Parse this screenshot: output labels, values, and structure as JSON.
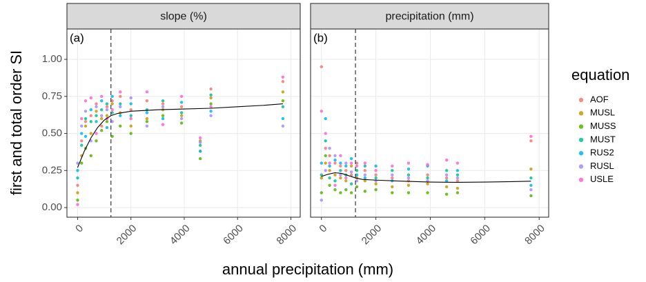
{
  "ylabel": "first and total order SI",
  "xlabel": "annual precipitation (mm)",
  "legend_title": "equation",
  "chart_data": [
    {
      "type": "scatter",
      "strip": "slope (%)",
      "tag": "(a)",
      "x": [
        0,
        150,
        300,
        500,
        700,
        900,
        1100,
        1300,
        1600,
        2000,
        2600,
        3200,
        3900,
        4600,
        5000,
        7700
      ],
      "series": [
        {
          "name": "AOF",
          "color": "#F8766D",
          "values": [
            0.15,
            0.45,
            0.58,
            0.62,
            0.7,
            0.55,
            0.68,
            0.72,
            0.75,
            0.66,
            0.72,
            0.7,
            0.68,
            0.38,
            0.8,
            0.85
          ]
        },
        {
          "name": "MUSL",
          "color": "#C49A00",
          "values": [
            0.1,
            0.35,
            0.55,
            0.5,
            0.65,
            0.6,
            0.62,
            0.7,
            0.64,
            0.55,
            0.6,
            0.66,
            0.62,
            0.45,
            0.74,
            0.78
          ]
        },
        {
          "name": "MUSS",
          "color": "#53B400",
          "values": [
            0.05,
            0.3,
            0.4,
            0.35,
            0.45,
            0.52,
            0.58,
            0.48,
            0.55,
            0.5,
            0.58,
            0.62,
            0.57,
            0.33,
            0.7,
            0.72
          ]
        },
        {
          "name": "MUST",
          "color": "#00C094",
          "values": [
            0.2,
            0.42,
            0.6,
            0.58,
            0.62,
            0.66,
            0.7,
            0.64,
            0.7,
            0.62,
            0.66,
            0.72,
            0.64,
            0.42,
            0.76,
            0.68
          ]
        },
        {
          "name": "RUS2",
          "color": "#00B6EB",
          "values": [
            0.25,
            0.5,
            0.48,
            0.66,
            0.58,
            0.72,
            0.54,
            0.75,
            0.62,
            0.7,
            0.64,
            0.6,
            0.71,
            0.38,
            0.65,
            0.6
          ]
        },
        {
          "name": "RUSL",
          "color": "#A58AFF",
          "values": [
            0.3,
            0.55,
            0.65,
            0.45,
            0.68,
            0.62,
            0.66,
            0.58,
            0.68,
            0.74,
            0.55,
            0.68,
            0.6,
            0.44,
            0.62,
            0.55
          ]
        },
        {
          "name": "USLE",
          "color": "#FB61D7",
          "values": [
            0.02,
            0.6,
            0.72,
            0.74,
            0.5,
            0.75,
            0.6,
            0.66,
            0.78,
            0.6,
            0.78,
            0.56,
            0.75,
            0.47,
            0.68,
            0.88
          ]
        }
      ],
      "trend": {
        "x": [
          0,
          250,
          500,
          750,
          1000,
          1250,
          1500,
          2000,
          3000,
          4000,
          5000,
          6000,
          7000,
          7700
        ],
        "values": [
          0.27,
          0.38,
          0.47,
          0.54,
          0.59,
          0.62,
          0.635,
          0.65,
          0.66,
          0.665,
          0.67,
          0.68,
          0.69,
          0.7
        ]
      },
      "vline": 1250,
      "xlim": [
        -400,
        8350
      ],
      "ylim": [
        -0.065,
        1.205
      ],
      "xticks": [
        0,
        2000,
        4000,
        6000,
        8000
      ],
      "yticks": [
        {
          "value": 0,
          "label": "0.00"
        },
        {
          "value": 0.25,
          "label": "0.25"
        },
        {
          "value": 0.5,
          "label": "0.50"
        },
        {
          "value": 0.75,
          "label": "0.75"
        },
        {
          "value": 1,
          "label": "1.00"
        }
      ],
      "grid": true
    },
    {
      "type": "scatter",
      "strip": "precipitation (mm)",
      "tag": "(b)",
      "x": [
        0,
        150,
        300,
        500,
        700,
        900,
        1100,
        1300,
        1600,
        2000,
        2600,
        3200,
        3900,
        4600,
        5000,
        7700
      ],
      "series": [
        {
          "name": "AOF",
          "color": "#F8766D",
          "values": [
            0.95,
            0.4,
            0.35,
            0.3,
            0.28,
            0.25,
            0.22,
            0.3,
            0.25,
            0.22,
            0.2,
            0.18,
            0.22,
            0.2,
            0.18,
            0.45
          ]
        },
        {
          "name": "MUSL",
          "color": "#C49A00",
          "values": [
            0.2,
            0.3,
            0.25,
            0.22,
            0.2,
            0.18,
            0.28,
            0.2,
            0.18,
            0.16,
            0.14,
            0.15,
            0.16,
            0.14,
            0.13,
            0.26
          ]
        },
        {
          "name": "MUSS",
          "color": "#53B400",
          "values": [
            0.1,
            0.35,
            0.15,
            0.12,
            0.1,
            0.12,
            0.1,
            0.14,
            0.11,
            0.12,
            0.1,
            0.1,
            0.1,
            0.09,
            0.1,
            0.08
          ]
        },
        {
          "name": "MUST",
          "color": "#00C094",
          "values": [
            0.22,
            0.45,
            0.2,
            0.18,
            0.25,
            0.22,
            0.16,
            0.25,
            0.28,
            0.2,
            0.25,
            0.22,
            0.2,
            0.25,
            0.22,
            0.2
          ]
        },
        {
          "name": "RUS2",
          "color": "#00B6EB",
          "values": [
            0.3,
            0.6,
            0.28,
            0.32,
            0.3,
            0.28,
            0.33,
            0.22,
            0.2,
            0.28,
            0.18,
            0.26,
            0.28,
            0.18,
            0.25,
            0.15
          ]
        },
        {
          "name": "RUSL",
          "color": "#A58AFF",
          "values": [
            0.05,
            0.25,
            0.4,
            0.35,
            0.22,
            0.3,
            0.24,
            0.18,
            0.22,
            0.18,
            0.22,
            0.2,
            0.18,
            0.22,
            0.2,
            0.12
          ]
        },
        {
          "name": "USLE",
          "color": "#FB61D7",
          "values": [
            0.65,
            0.5,
            0.3,
            0.15,
            0.35,
            0.2,
            0.3,
            0.28,
            0.3,
            0.25,
            0.28,
            0.3,
            0.29,
            0.32,
            0.3,
            0.48
          ]
        }
      ],
      "trend": {
        "x": [
          0,
          250,
          500,
          750,
          1000,
          1250,
          1500,
          2000,
          3000,
          4000,
          5000,
          6000,
          7000,
          7700
        ],
        "values": [
          0.21,
          0.225,
          0.235,
          0.23,
          0.215,
          0.2,
          0.19,
          0.185,
          0.178,
          0.172,
          0.17,
          0.172,
          0.175,
          0.178
        ]
      },
      "vline": 1250,
      "xlim": [
        -400,
        8350
      ],
      "ylim": [
        -0.065,
        1.205
      ],
      "xticks": [
        0,
        2000,
        4000,
        6000,
        8000
      ],
      "grid": true
    }
  ]
}
